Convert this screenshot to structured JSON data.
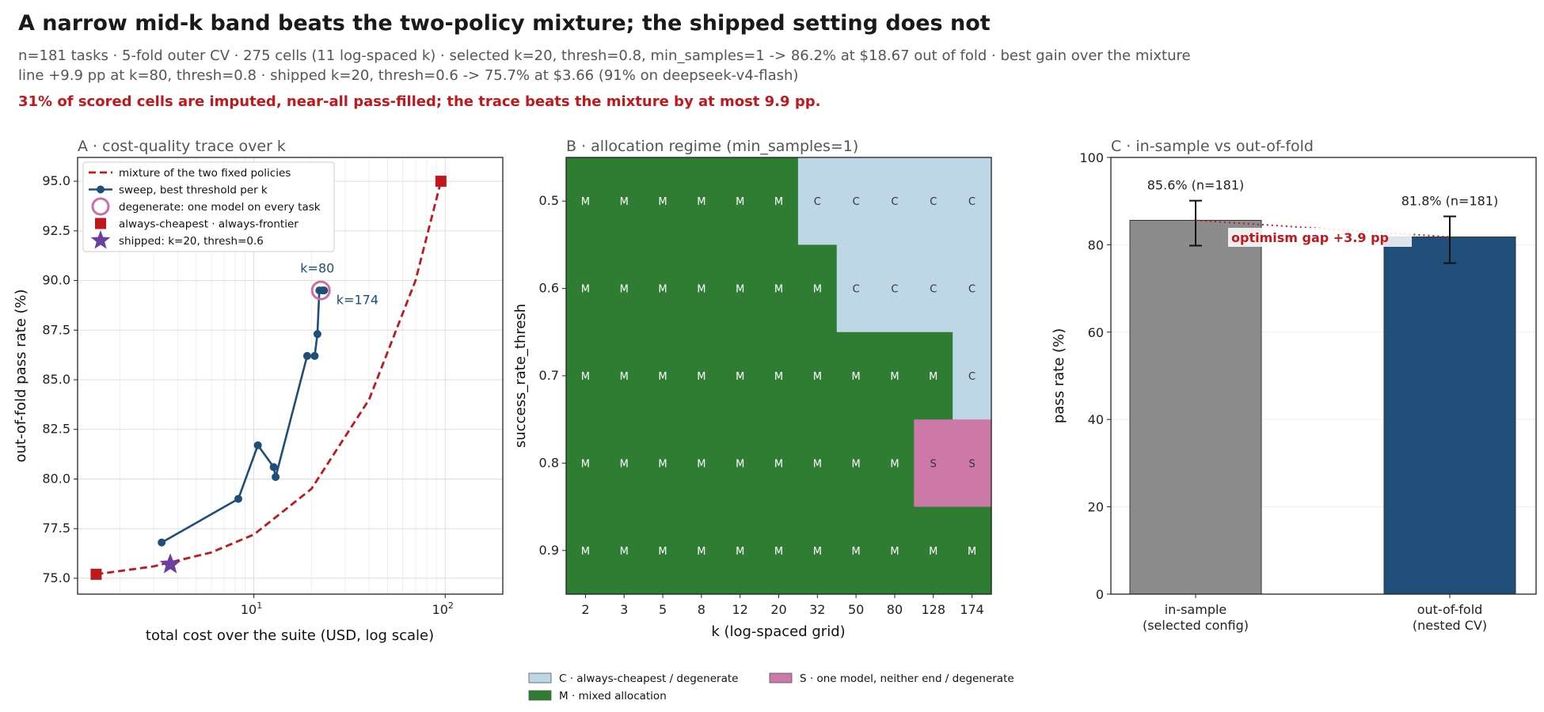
{
  "title": "A narrow mid-k band beats the two-policy mixture; the shipped setting does not",
  "subtitle_line1": "n=181 tasks · 5-fold outer CV · 275 cells (11 log-spaced k) · selected k=20, thresh=0.8, min_samples=1 -> 86.2% at $18.67 out of fold · best gain over the mixture",
  "subtitle_line2": "line +9.9 pp at k=80, thresh=0.8 · shipped k=20, thresh=0.6 -> 75.7% at $3.66 (91% on deepseek-v4-flash)",
  "warning": "31% of scored cells are imputed, near-all pass-filled; the trace beats the mixture by at most 9.9 pp.",
  "colors": {
    "mixture_line": "#c0181c",
    "sweep_line": "#1f4e79",
    "degenerate_ring": "#cc6fa6",
    "endpoints": "#c0181c",
    "shipped_star": "#6b3fa0",
    "regime_C": "#bdd7e7",
    "regime_M": "#2e7d32",
    "regime_S": "#cc79a7",
    "bar_insample": "#8c8c8c",
    "bar_oof": "#1f4e79",
    "gap_annotation": "#c0181c"
  },
  "chart_data": [
    {
      "panel": "A",
      "type": "line",
      "title": "A · cost-quality trace over k",
      "xlabel": "total cost over the suite (USD, log scale)",
      "ylabel": "out-of-fold pass rate (%)",
      "xscale": "log",
      "xlim": [
        1.2,
        200
      ],
      "ylim": [
        74.2,
        96.2
      ],
      "x_ticks": [
        {
          "value": 10,
          "base": "10",
          "exp": "1"
        },
        {
          "value": 100,
          "base": "10",
          "exp": "2"
        }
      ],
      "y_ticks": [
        "75.0",
        "77.5",
        "80.0",
        "82.5",
        "85.0",
        "87.5",
        "90.0",
        "92.5",
        "95.0"
      ],
      "grid": true,
      "legend_position": "top-left",
      "legend": [
        "mixture of the two fixed policies",
        "sweep, best threshold per k",
        "degenerate: one model on every task",
        "always-cheapest · always-frontier",
        "shipped: k=20, thresh=0.6"
      ],
      "series": [
        {
          "name": "mixture of the two fixed policies",
          "style": "dashed",
          "x": [
            1.5,
            3,
            6,
            10,
            20,
            40,
            70,
            95
          ],
          "y": [
            75.2,
            75.6,
            76.3,
            77.2,
            79.5,
            84.0,
            90.0,
            95.0
          ]
        },
        {
          "name": "sweep, best threshold per k",
          "style": "line-markers",
          "x": [
            3.3,
            8.3,
            10.5,
            12.7,
            13.0,
            19.0,
            20.8,
            21.5,
            22.0,
            22.8,
            23.3
          ],
          "y": [
            76.8,
            79.0,
            81.7,
            80.6,
            80.1,
            86.2,
            86.2,
            87.3,
            89.5,
            89.5,
            89.5
          ]
        },
        {
          "name": "degenerate: one model on every task",
          "style": "ring",
          "x": [
            22.4
          ],
          "y": [
            89.5
          ]
        },
        {
          "name": "always-cheapest · always-frontier",
          "style": "square",
          "x": [
            1.5,
            95
          ],
          "y": [
            75.2,
            95.0
          ]
        },
        {
          "name": "shipped: k=20, thresh=0.6",
          "style": "star",
          "x": [
            3.66
          ],
          "y": [
            75.7
          ]
        }
      ],
      "annotations": [
        {
          "text": "k=80",
          "x": 17.5,
          "y": 90.4
        },
        {
          "text": "k=174",
          "x": 27,
          "y": 88.8
        }
      ]
    },
    {
      "panel": "B",
      "type": "heatmap",
      "title": "B · allocation regime (min_samples=1)",
      "xlabel": "k  (log-spaced grid)",
      "ylabel": "success_rate_thresh",
      "x_categories": [
        "2",
        "3",
        "5",
        "8",
        "12",
        "20",
        "32",
        "50",
        "80",
        "128",
        "174"
      ],
      "y_categories": [
        "0.5",
        "0.6",
        "0.7",
        "0.8",
        "0.9"
      ],
      "cells": [
        [
          "M",
          "M",
          "M",
          "M",
          "M",
          "M",
          "C",
          "C",
          "C",
          "C",
          "C"
        ],
        [
          "M",
          "M",
          "M",
          "M",
          "M",
          "M",
          "M",
          "C",
          "C",
          "C",
          "C"
        ],
        [
          "M",
          "M",
          "M",
          "M",
          "M",
          "M",
          "M",
          "M",
          "M",
          "M",
          "C"
        ],
        [
          "M",
          "M",
          "M",
          "M",
          "M",
          "M",
          "M",
          "M",
          "M",
          "S",
          "S"
        ],
        [
          "M",
          "M",
          "M",
          "M",
          "M",
          "M",
          "M",
          "M",
          "M",
          "M",
          "M"
        ]
      ],
      "legend": [
        {
          "code": "C",
          "label": "C · always-cheapest / degenerate"
        },
        {
          "code": "S",
          "label": "S · one model, neither end / degenerate"
        },
        {
          "code": "M",
          "label": "M · mixed allocation"
        }
      ]
    },
    {
      "panel": "C",
      "type": "bar",
      "title": "C · in-sample vs out-of-fold",
      "ylabel": "pass rate (%)",
      "ylim": [
        0,
        100
      ],
      "y_ticks": [
        "0",
        "20",
        "40",
        "60",
        "80",
        "100"
      ],
      "categories": [
        {
          "line1": "in-sample",
          "line2": "(selected config)"
        },
        {
          "line1": "out-of-fold",
          "line2": "(nested CV)"
        }
      ],
      "values": [
        85.6,
        81.8
      ],
      "error_low": [
        79.8,
        75.8
      ],
      "error_high": [
        90.1,
        86.5
      ],
      "value_labels": [
        "85.6%  (n=181)",
        "81.8%  (n=181)"
      ],
      "annotation": "optimism gap +3.9 pp"
    }
  ]
}
